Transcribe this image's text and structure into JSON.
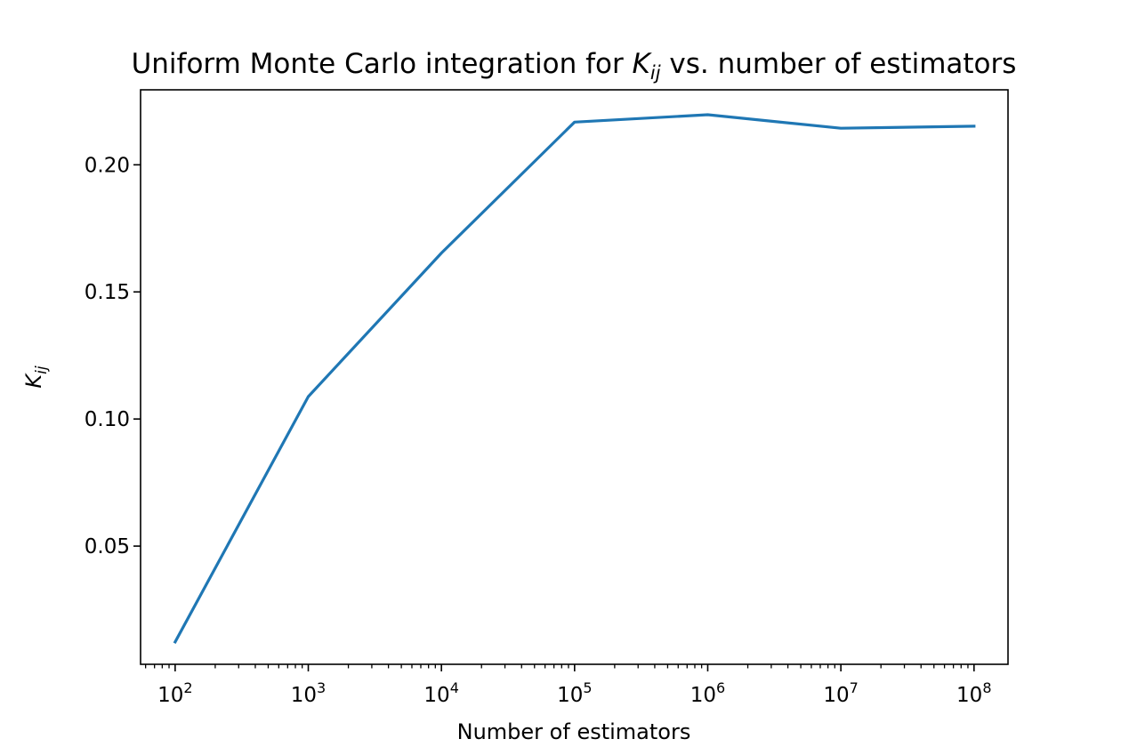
{
  "chart_data": {
    "type": "line",
    "title": {
      "prefix": "Uniform Monte Carlo integration for ",
      "symbol": "K",
      "subscript": "ij",
      "suffix": " vs. number of estimators"
    },
    "xlabel": "Number of estimators",
    "ylabel": {
      "symbol": "K",
      "subscript": "ij"
    },
    "xscale": "log",
    "xlim": [
      55,
      180000000
    ],
    "ylim": [
      0.0035,
      0.2295
    ],
    "xticks": [
      {
        "value": 100,
        "base": "10",
        "exp": "2"
      },
      {
        "value": 1000,
        "base": "10",
        "exp": "3"
      },
      {
        "value": 10000,
        "base": "10",
        "exp": "4"
      },
      {
        "value": 100000,
        "base": "10",
        "exp": "5"
      },
      {
        "value": 1000000,
        "base": "10",
        "exp": "6"
      },
      {
        "value": 10000000,
        "base": "10",
        "exp": "7"
      },
      {
        "value": 100000000,
        "base": "10",
        "exp": "8"
      }
    ],
    "yticks": [
      {
        "value": 0.05,
        "label": "0.05"
      },
      {
        "value": 0.1,
        "label": "0.10"
      },
      {
        "value": 0.15,
        "label": "0.15"
      },
      {
        "value": 0.2,
        "label": "0.20"
      }
    ],
    "grid": false,
    "series": [
      {
        "color": "#1f77b4",
        "x": [
          100,
          1000,
          10000,
          100000,
          1000000,
          10000000,
          100000000
        ],
        "y": [
          0.0123,
          0.1088,
          0.1653,
          0.2168,
          0.2197,
          0.2144,
          0.2152
        ]
      }
    ]
  }
}
